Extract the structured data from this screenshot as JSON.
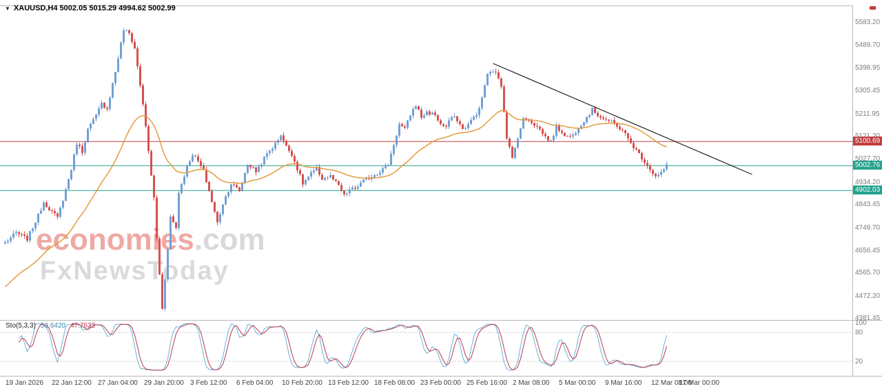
{
  "window": {
    "symbol_info": "XAUUSD,H4 5002.05 5015.29 4994.62 5002.99",
    "symbol": "XAUUSD,H4",
    "ohlc": {
      "open": "5002.05",
      "high": "5015.29",
      "low": "4994.62",
      "close": "5002.99"
    }
  },
  "watermark": {
    "line1_main": "economies",
    "line1_suffix": ".com",
    "line2": "FxNewsToday"
  },
  "levels": [
    {
      "value": "5100.69",
      "price": 5100.69,
      "color": "#bf4040",
      "type": "resistance"
    },
    {
      "value": "5002.76",
      "price": 5002.76,
      "color": "#26a28e",
      "type": "support"
    },
    {
      "value": "4902.03",
      "price": 4902.03,
      "color": "#26a28e",
      "type": "support"
    }
  ],
  "indicator": {
    "name": "Sto(5,3,3)",
    "main": "53.6420",
    "signal": "47.7632",
    "scale": [
      "100",
      "80",
      "20"
    ]
  },
  "chart_data": {
    "type": "candlestick",
    "symbol": "XAUUSD",
    "timeframe": "H4",
    "ohlc_current": {
      "open": 5002.05,
      "high": 5015.29,
      "low": 4994.62,
      "close": 5002.99
    },
    "price_range": [
      4381.45,
      5583.2
    ],
    "y_ticks": [
      5583.2,
      5489.7,
      5398.95,
      5305.45,
      5211.95,
      5121.2,
      5027.7,
      4934.2,
      4843.45,
      4749.7,
      4656.45,
      4565.7,
      4472.2,
      4381.45
    ],
    "x_labels": [
      "19 Jan 2026",
      "22 Jan 12:00",
      "27 Jan 04:00",
      "29 Jan 20:00",
      "3 Feb 12:00",
      "6 Feb 04:00",
      "10 Feb 20:00",
      "13 Feb 12:00",
      "18 Feb 08:00",
      "23 Feb 00:00",
      "25 Feb 16:00",
      "2 Mar 08:00",
      "5 Mar 00:00",
      "9 Mar 16:00",
      "12 Mar 08:00",
      "17 Mar 00:00"
    ],
    "candle_count": 241,
    "close_waypoints": [
      [
        0,
        4690
      ],
      [
        4,
        4730
      ],
      [
        8,
        4705
      ],
      [
        12,
        4800
      ],
      [
        14,
        4855
      ],
      [
        17,
        4815
      ],
      [
        19,
        4790
      ],
      [
        22,
        4905
      ],
      [
        24,
        4990
      ],
      [
        26,
        5095
      ],
      [
        28,
        5060
      ],
      [
        30,
        5150
      ],
      [
        33,
        5205
      ],
      [
        35,
        5255
      ],
      [
        37,
        5235
      ],
      [
        40,
        5385
      ],
      [
        43,
        5555
      ],
      [
        45,
        5540
      ],
      [
        47,
        5480
      ],
      [
        48,
        5405
      ],
      [
        50,
        5255
      ],
      [
        52,
        5060
      ],
      [
        54,
        4870
      ],
      [
        55,
        4705
      ],
      [
        57,
        4420
      ],
      [
        58,
        4545
      ],
      [
        60,
        4795
      ],
      [
        62,
        4750
      ],
      [
        63,
        4895
      ],
      [
        66,
        5000
      ],
      [
        68,
        5050
      ],
      [
        70,
        5020
      ],
      [
        72,
        4980
      ],
      [
        74,
        4900
      ],
      [
        77,
        4770
      ],
      [
        79,
        4850
      ],
      [
        82,
        4930
      ],
      [
        85,
        4900
      ],
      [
        88,
        5010
      ],
      [
        91,
        4980
      ],
      [
        95,
        5050
      ],
      [
        98,
        5090
      ],
      [
        100,
        5130
      ],
      [
        102,
        5080
      ],
      [
        104,
        5050
      ],
      [
        106,
        4990
      ],
      [
        108,
        4930
      ],
      [
        111,
        4970
      ],
      [
        113,
        4990
      ],
      [
        115,
        4950
      ],
      [
        118,
        4960
      ],
      [
        121,
        4920
      ],
      [
        123,
        4880
      ],
      [
        125,
        4905
      ],
      [
        127,
        4910
      ],
      [
        130,
        4940
      ],
      [
        133,
        4960
      ],
      [
        136,
        4980
      ],
      [
        139,
        5010
      ],
      [
        141,
        5090
      ],
      [
        143,
        5170
      ],
      [
        145,
        5150
      ],
      [
        147,
        5210
      ],
      [
        149,
        5250
      ],
      [
        151,
        5200
      ],
      [
        153,
        5220
      ],
      [
        156,
        5210
      ],
      [
        158,
        5170
      ],
      [
        160,
        5160
      ],
      [
        162,
        5200
      ],
      [
        164,
        5190
      ],
      [
        166,
        5150
      ],
      [
        168,
        5170
      ],
      [
        170,
        5200
      ],
      [
        172,
        5230
      ],
      [
        174,
        5330
      ],
      [
        175,
        5370
      ],
      [
        177,
        5390
      ],
      [
        179,
        5360
      ],
      [
        180,
        5330
      ],
      [
        182,
        5120
      ],
      [
        184,
        5030
      ],
      [
        186,
        5120
      ],
      [
        188,
        5190
      ],
      [
        190,
        5190
      ],
      [
        192,
        5170
      ],
      [
        194,
        5150
      ],
      [
        196,
        5120
      ],
      [
        198,
        5100
      ],
      [
        200,
        5160
      ],
      [
        202,
        5140
      ],
      [
        204,
        5120
      ],
      [
        206,
        5125
      ],
      [
        208,
        5160
      ],
      [
        210,
        5185
      ],
      [
        213,
        5230
      ],
      [
        215,
        5210
      ],
      [
        217,
        5195
      ],
      [
        220,
        5180
      ],
      [
        222,
        5160
      ],
      [
        224,
        5150
      ],
      [
        226,
        5110
      ],
      [
        228,
        5080
      ],
      [
        230,
        5050
      ],
      [
        232,
        5020
      ],
      [
        234,
        4990
      ],
      [
        236,
        4958
      ],
      [
        238,
        4972
      ],
      [
        240,
        5003
      ]
    ],
    "trendline": {
      "from_index": 177,
      "from_price": 5418,
      "to_index": 271,
      "to_price": 4967
    },
    "horizontal_lines": [
      5100.69,
      5002.76,
      4902.03
    ],
    "ma_line": {
      "type": "ema",
      "approx_period": 35
    },
    "stochastic": {
      "k_period": 5,
      "k_slowing": 3,
      "d_period": 3,
      "current_main": 53.642,
      "current_signal": 47.7632,
      "levels": [
        80,
        20
      ],
      "scale_max": 100,
      "scale_min": 0
    },
    "colors": {
      "up": "#72a0d4",
      "down": "#d65050",
      "ma": "#e39b3c",
      "trend": "#222222",
      "sto_k": "#6ab2d8",
      "sto_d": "#b8394d",
      "resistance": "#bf4040",
      "support": "#26a28e"
    }
  }
}
